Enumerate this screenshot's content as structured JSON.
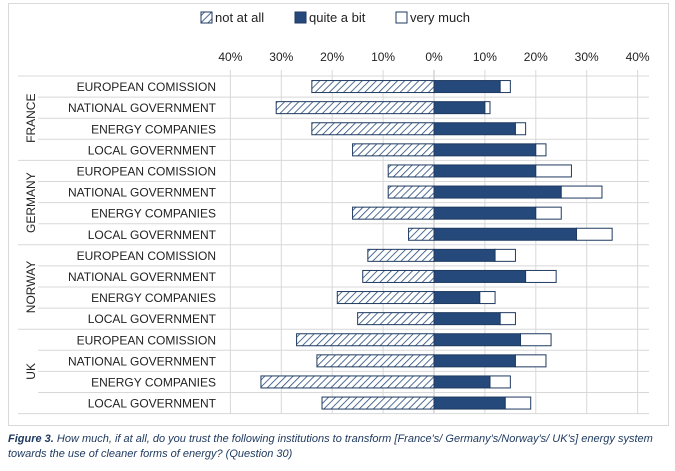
{
  "chart_data": {
    "type": "bar",
    "orientation": "horizontal-diverging",
    "legend_position": "top",
    "legend": [
      {
        "key": "not_at_all",
        "label": "not at all"
      },
      {
        "key": "quite_a_bit",
        "label": "quite a bit"
      },
      {
        "key": "very_much",
        "label": "very much"
      }
    ],
    "x_ticks": [
      "40%",
      "30%",
      "20%",
      "10%",
      "0%",
      "10%",
      "20%",
      "30%",
      "40%"
    ],
    "xlim": [
      -40,
      40
    ],
    "grid": true,
    "groups": [
      {
        "name": "FRANCE",
        "rows": [
          {
            "label": "EUROPEAN COMISSION",
            "not_at_all": 24,
            "quite_a_bit": 13,
            "very_much": 2
          },
          {
            "label": "NATIONAL GOVERNMENT",
            "not_at_all": 31,
            "quite_a_bit": 10,
            "very_much": 1
          },
          {
            "label": "ENERGY COMPANIES",
            "not_at_all": 24,
            "quite_a_bit": 16,
            "very_much": 2
          },
          {
            "label": "LOCAL GOVERNMENT",
            "not_at_all": 16,
            "quite_a_bit": 20,
            "very_much": 2
          }
        ]
      },
      {
        "name": "GERMANY",
        "rows": [
          {
            "label": "EUROPEAN COMISSION",
            "not_at_all": 9,
            "quite_a_bit": 20,
            "very_much": 7
          },
          {
            "label": "NATIONAL GOVERNMENT",
            "not_at_all": 9,
            "quite_a_bit": 25,
            "very_much": 8
          },
          {
            "label": "ENERGY COMPANIES",
            "not_at_all": 16,
            "quite_a_bit": 20,
            "very_much": 5
          },
          {
            "label": "LOCAL GOVERNMENT",
            "not_at_all": 5,
            "quite_a_bit": 28,
            "very_much": 7
          }
        ]
      },
      {
        "name": "NORWAY",
        "rows": [
          {
            "label": "EUROPEAN COMISSION",
            "not_at_all": 13,
            "quite_a_bit": 12,
            "very_much": 4
          },
          {
            "label": "NATIONAL GOVERNMENT",
            "not_at_all": 14,
            "quite_a_bit": 18,
            "very_much": 6
          },
          {
            "label": "ENERGY COMPANIES",
            "not_at_all": 19,
            "quite_a_bit": 9,
            "very_much": 3
          },
          {
            "label": "LOCAL GOVERNMENT",
            "not_at_all": 15,
            "quite_a_bit": 13,
            "very_much": 3
          }
        ]
      },
      {
        "name": "UK",
        "rows": [
          {
            "label": "EUROPEAN COMISSION",
            "not_at_all": 27,
            "quite_a_bit": 17,
            "very_much": 6
          },
          {
            "label": "NATIONAL GOVERNMENT",
            "not_at_all": 23,
            "quite_a_bit": 16,
            "very_much": 6
          },
          {
            "label": "ENERGY COMPANIES",
            "not_at_all": 34,
            "quite_a_bit": 11,
            "very_much": 4
          },
          {
            "label": "LOCAL GOVERNMENT",
            "not_at_all": 22,
            "quite_a_bit": 14,
            "very_much": 5
          }
        ]
      }
    ],
    "colors": {
      "quite_a_bit": "#24497a",
      "very_much": "#ffffff",
      "hatch_line": "#24497a",
      "hatch_bg": "#ffffff",
      "outline": "#1f3a60",
      "label_text": "#222222",
      "grid": "#d8d8d8"
    }
  },
  "caption": {
    "figure_label": "Figure 3.",
    "text": "How much, if at all, do you trust the following institutions to transform [France's/ Germany's/Norway's/ UK's] energy system towards the use of cleaner forms of energy? (Question 30)"
  }
}
